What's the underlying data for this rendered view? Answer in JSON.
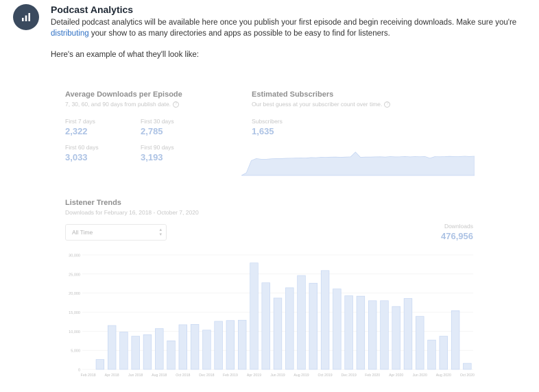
{
  "header": {
    "title": "Podcast Analytics",
    "desc_part1": "Detailed podcast analytics will be available here once you publish your first episode and begin receiving downloads. Make sure you're ",
    "desc_link": "distributing",
    "desc_part2": " your show to as many directories and apps as possible to be easy to find for listeners.",
    "example_text": "Here's an example of what they'll look like:"
  },
  "avg_downloads": {
    "title": "Average Downloads per Episode",
    "subtitle": "7, 30, 60, and 90 days from publish date.",
    "stats": [
      {
        "label": "First 7 days",
        "value": "2,322"
      },
      {
        "label": "First 30 days",
        "value": "2,785"
      },
      {
        "label": "First 60 days",
        "value": "3,033"
      },
      {
        "label": "First 90 days",
        "value": "3,193"
      }
    ]
  },
  "subscribers": {
    "title": "Estimated Subscribers",
    "subtitle": "Our best guess at your subscriber count over time.",
    "label": "Subscribers",
    "value": "1,635"
  },
  "trends": {
    "title": "Listener Trends",
    "subtitle": "Downloads for February 16, 2018 - October 7, 2020",
    "select_value": "All Time",
    "downloads_label": "Downloads",
    "downloads_total": "476,956"
  },
  "colors": {
    "bar_fill": "#c9d9f4",
    "bar_stroke": "#8fb0e6",
    "value_blue": "#6a92cf",
    "link_blue": "#2d6fc4",
    "icon_bg": "#3a4a5e"
  },
  "chart_data": [
    {
      "type": "bar",
      "title": "Listener Trends",
      "yticks": [
        "0",
        "5,000",
        "10,000",
        "15,000",
        "20,000",
        "25,000",
        "30,000"
      ],
      "ylim": [
        0,
        30000
      ],
      "xtick_labels": [
        "Feb 2018",
        "Apr 2018",
        "Jun 2018",
        "Aug 2018",
        "Oct 2018",
        "Dec 2018",
        "Feb 2019",
        "Apr 2019",
        "Jun 2019",
        "Aug 2019",
        "Oct 2019",
        "Dec 2019",
        "Feb 2020",
        "Apr 2020",
        "Jun 2020",
        "Aug 2020",
        "Oct 2020"
      ],
      "values": [
        0,
        2600,
        11500,
        9800,
        8700,
        9100,
        10700,
        7500,
        11700,
        11800,
        10300,
        12600,
        12800,
        12900,
        27900,
        22700,
        18700,
        21400,
        24600,
        22600,
        25900,
        21100,
        19300,
        19200,
        18000,
        18000,
        16500,
        18600,
        13900,
        7700,
        8700,
        15400,
        1600
      ],
      "grid": true
    },
    {
      "type": "area",
      "title": "Estimated Subscribers",
      "values": [
        0,
        200,
        1150,
        1300,
        1250,
        1250,
        1280,
        1300,
        1300,
        1320,
        1330,
        1340,
        1350,
        1340,
        1380,
        1370,
        1400,
        1390,
        1410,
        1420,
        1400,
        1420,
        1430,
        1800,
        1400,
        1420,
        1420,
        1430,
        1440,
        1420,
        1450,
        1430,
        1440,
        1460,
        1430,
        1450,
        1440,
        1460,
        1330,
        1450,
        1440,
        1450,
        1470,
        1450,
        1460,
        1480,
        1460,
        1480
      ]
    }
  ]
}
